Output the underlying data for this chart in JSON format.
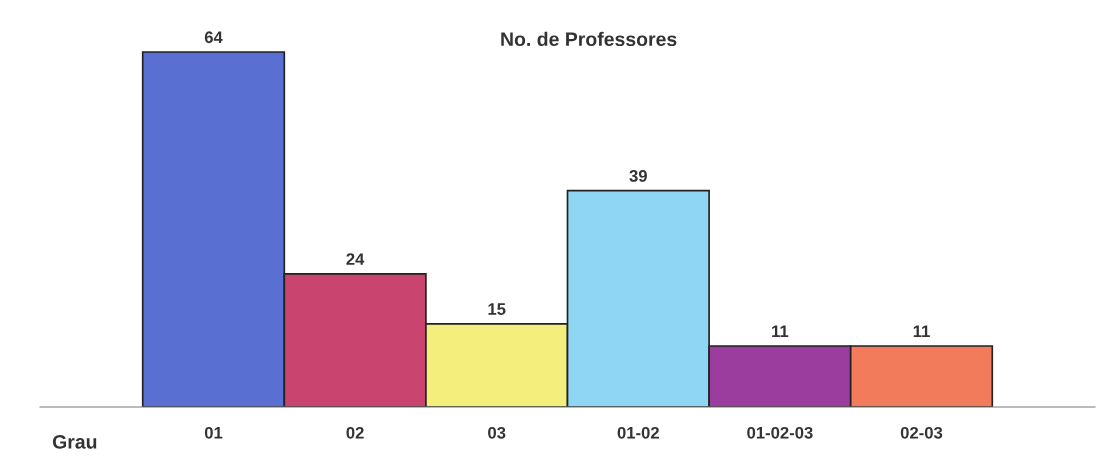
{
  "chart_data": {
    "type": "bar",
    "title": "No. de Professores",
    "xlabel": "Grau",
    "categories": [
      "01",
      "02",
      "03",
      "01-02",
      "01-02-03",
      "02-03"
    ],
    "values": [
      64,
      24,
      15,
      39,
      11,
      11
    ],
    "colors": [
      "#5a6fd2",
      "#c9456f",
      "#f4ef7c",
      "#8ed6f4",
      "#9a3d9e",
      "#f27b5c"
    ],
    "data_labels": true,
    "grid": false,
    "legend": false
  }
}
